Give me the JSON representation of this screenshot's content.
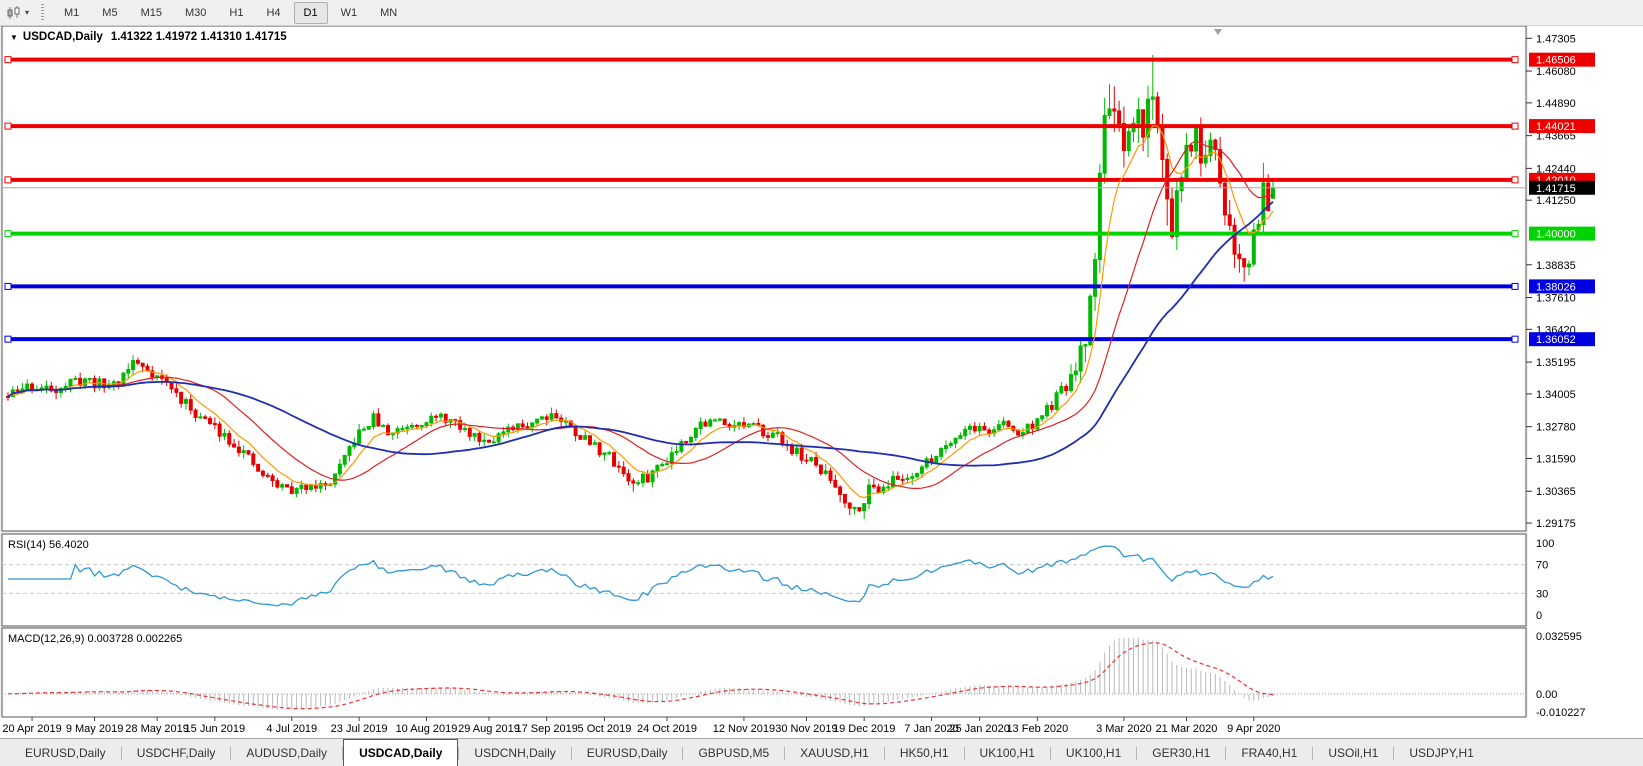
{
  "toolbar": {
    "timeframes": [
      "M1",
      "M5",
      "M15",
      "M30",
      "H1",
      "H4",
      "D1",
      "W1",
      "MN"
    ],
    "active_timeframe": "D1",
    "chart_style_icon": "candlestick-style-icon",
    "dropdown_caret": "▾"
  },
  "window": {
    "dropdown_icon": "▼",
    "title_symbol": "USDCAD,Daily",
    "title_ohlc": "1.41322 1.41972 1.41310 1.41715"
  },
  "indicators": {
    "rsi_label": "RSI(14) 56.4020",
    "macd_label": "MACD(12,26,9) 0.003728 0.002265"
  },
  "chart_data": {
    "type": "candlestick",
    "symbol": "USDCAD",
    "timeframe": "Daily",
    "last_candle": {
      "open": 1.41322,
      "high": 1.41972,
      "low": 1.4131,
      "close": 1.41715
    },
    "n_candles": 264,
    "seed": 11,
    "close_waypoints": [
      [
        0,
        1.339
      ],
      [
        4,
        1.343
      ],
      [
        8,
        1.3415
      ],
      [
        12,
        1.3435
      ],
      [
        16,
        1.3455
      ],
      [
        20,
        1.343
      ],
      [
        23,
        1.345
      ],
      [
        26,
        1.352
      ],
      [
        29,
        1.3495
      ],
      [
        33,
        1.344
      ],
      [
        37,
        1.336
      ],
      [
        41,
        1.33
      ],
      [
        45,
        1.325
      ],
      [
        49,
        1.318
      ],
      [
        52,
        1.311
      ],
      [
        56,
        1.306
      ],
      [
        60,
        1.3035
      ],
      [
        63,
        1.307
      ],
      [
        66,
        1.305
      ],
      [
        69,
        1.312
      ],
      [
        72,
        1.323
      ],
      [
        76,
        1.331
      ],
      [
        79,
        1.325
      ],
      [
        83,
        1.3285
      ],
      [
        87,
        1.3305
      ],
      [
        91,
        1.331
      ],
      [
        95,
        1.326
      ],
      [
        99,
        1.323
      ],
      [
        103,
        1.325
      ],
      [
        107,
        1.328
      ],
      [
        110,
        1.331
      ],
      [
        113,
        1.333
      ],
      [
        116,
        1.329
      ],
      [
        120,
        1.323
      ],
      [
        124,
        1.318
      ],
      [
        127,
        1.313
      ],
      [
        130,
        1.306
      ],
      [
        133,
        1.309
      ],
      [
        136,
        1.314
      ],
      [
        140,
        1.322
      ],
      [
        144,
        1.329
      ],
      [
        148,
        1.33
      ],
      [
        152,
        1.3285
      ],
      [
        156,
        1.327
      ],
      [
        160,
        1.324
      ],
      [
        164,
        1.318
      ],
      [
        168,
        1.313
      ],
      [
        171,
        1.308
      ],
      [
        174,
        1.301
      ],
      [
        176,
        1.2965
      ],
      [
        179,
        1.304
      ],
      [
        183,
        1.307
      ],
      [
        187,
        1.309
      ],
      [
        191,
        1.314
      ],
      [
        196,
        1.323
      ],
      [
        200,
        1.328
      ],
      [
        204,
        1.326
      ],
      [
        207,
        1.329
      ],
      [
        210,
        1.325
      ],
      [
        214,
        1.33
      ],
      [
        217,
        1.336
      ],
      [
        220,
        1.343
      ],
      [
        222,
        1.348
      ],
      [
        224,
        1.36
      ],
      [
        225,
        1.375
      ],
      [
        226,
        1.395
      ],
      [
        227,
        1.42
      ],
      [
        228,
        1.442
      ],
      [
        229,
        1.453
      ],
      [
        230,
        1.445
      ],
      [
        231,
        1.434
      ],
      [
        232,
        1.425
      ],
      [
        233,
        1.433
      ],
      [
        234,
        1.439
      ],
      [
        235,
        1.444
      ],
      [
        236,
        1.44
      ],
      [
        237,
        1.448
      ],
      [
        238,
        1.455
      ],
      [
        239,
        1.438
      ],
      [
        240,
        1.425
      ],
      [
        241,
        1.415
      ],
      [
        242,
        1.404
      ],
      [
        243,
        1.413
      ],
      [
        244,
        1.422
      ],
      [
        245,
        1.428
      ],
      [
        246,
        1.433
      ],
      [
        247,
        1.438
      ],
      [
        248,
        1.43
      ],
      [
        249,
        1.425
      ],
      [
        250,
        1.432
      ],
      [
        251,
        1.428
      ],
      [
        252,
        1.418
      ],
      [
        253,
        1.41
      ],
      [
        254,
        1.402
      ],
      [
        255,
        1.396
      ],
      [
        256,
        1.39
      ],
      [
        257,
        1.387
      ],
      [
        258,
        1.392
      ],
      [
        259,
        1.4
      ],
      [
        260,
        1.408
      ],
      [
        261,
        1.418
      ],
      [
        262,
        1.412
      ],
      [
        263,
        1.41715
      ]
    ],
    "vol_waypoints": [
      [
        0,
        0.0048
      ],
      [
        40,
        0.0045
      ],
      [
        80,
        0.004
      ],
      [
        130,
        0.0048
      ],
      [
        160,
        0.004
      ],
      [
        172,
        0.0055
      ],
      [
        178,
        0.006
      ],
      [
        190,
        0.0042
      ],
      [
        210,
        0.0038
      ],
      [
        218,
        0.0048
      ],
      [
        222,
        0.008
      ],
      [
        225,
        0.013
      ],
      [
        228,
        0.0175
      ],
      [
        232,
        0.0155
      ],
      [
        236,
        0.0145
      ],
      [
        240,
        0.0135
      ],
      [
        244,
        0.0115
      ],
      [
        250,
        0.01
      ],
      [
        255,
        0.0105
      ],
      [
        258,
        0.0115
      ],
      [
        263,
        0.0085
      ]
    ],
    "extreme_candles": [
      {
        "index": 26,
        "high": 1.3545
      },
      {
        "index": 130,
        "low": 1.3035
      },
      {
        "index": 176,
        "low": 1.2952
      },
      {
        "index": 229,
        "high": 1.456
      },
      {
        "index": 238,
        "high": 1.4668
      },
      {
        "index": 241,
        "low": 1.403
      },
      {
        "index": 257,
        "low": 1.382
      },
      {
        "index": 261,
        "high": 1.4265
      }
    ],
    "price_axis": {
      "ticks": [
        1.47305,
        1.4608,
        1.4489,
        1.43665,
        1.4244,
        1.4125,
        1.38835,
        1.3761,
        1.3642,
        1.35195,
        1.34005,
        1.3278,
        1.3159,
        1.30365,
        1.29175
      ]
    },
    "levels": [
      {
        "value": 1.46506,
        "color": "#ee0000"
      },
      {
        "value": 1.44021,
        "color": "#ee0000"
      },
      {
        "value": 1.4201,
        "color": "#ee0000"
      },
      {
        "value": 1.4,
        "color": "#00d400"
      },
      {
        "value": 1.38026,
        "color": "#0000e0"
      },
      {
        "value": 1.36052,
        "color": "#0000e0"
      }
    ],
    "current_price": {
      "value": 1.41715,
      "badge_color": "#000000",
      "line_color": "#a8a8a8"
    },
    "moving_averages": [
      {
        "type": "ema",
        "period": 8,
        "color": "#ff9800",
        "width": 1.2
      },
      {
        "type": "sma",
        "period": 20,
        "color": "#e02020",
        "width": 1.2
      },
      {
        "type": "sma",
        "period": 45,
        "color": "#1f2db0",
        "width": 1.8
      }
    ],
    "rsi": {
      "period": 14,
      "current": 56.402,
      "levels": [
        70,
        30
      ],
      "axis_ticks": [
        100,
        70,
        30,
        0
      ],
      "color": "#2e97d6",
      "level_color": "#c8c8c8"
    },
    "macd": {
      "fast": 12,
      "slow": 26,
      "signal": 9,
      "current_macd": 0.003728,
      "current_signal": 0.002265,
      "max": 0.032595,
      "min": -0.010227,
      "axis_ticks": [
        "0.032595",
        "0.00",
        "-0.010227"
      ],
      "hist_color": "#b8b8b8",
      "signal_color": "#ee3333",
      "zero_color": "#999999"
    },
    "x_axis": {
      "ticks": [
        {
          "bar": 5,
          "label": "20 Apr 2019"
        },
        {
          "bar": 18,
          "label": "9 May 2019"
        },
        {
          "bar": 31,
          "label": "28 May 2019"
        },
        {
          "bar": 43,
          "label": "15 Jun 2019"
        },
        {
          "bar": 59,
          "label": "4 Jul 2019"
        },
        {
          "bar": 73,
          "label": "23 Jul 2019"
        },
        {
          "bar": 87,
          "label": "10 Aug 2019"
        },
        {
          "bar": 100,
          "label": "29 Aug 2019"
        },
        {
          "bar": 112,
          "label": "17 Sep 2019"
        },
        {
          "bar": 124,
          "label": "5 Oct 2019"
        },
        {
          "bar": 137,
          "label": "24 Oct 2019"
        },
        {
          "bar": 153,
          "label": "12 Nov 2019"
        },
        {
          "bar": 166,
          "label": "30 Nov 2019"
        },
        {
          "bar": 178,
          "label": "19 Dec 2019"
        },
        {
          "bar": 192,
          "label": "7 Jan 2020"
        },
        {
          "bar": 202,
          "label": "25 Jan 2020"
        },
        {
          "bar": 214,
          "label": "13 Feb 2020"
        },
        {
          "bar": 232,
          "label": "3 Mar 2020"
        },
        {
          "bar": 245,
          "label": "21 Mar 2020"
        },
        {
          "bar": 259,
          "label": "9 Apr 2020"
        }
      ]
    },
    "candle_up_color": "#00b800",
    "candle_down_color": "#e60000",
    "panel_border_color": "#565656",
    "grid": false
  },
  "tabs": {
    "items": [
      "EURUSD,Daily",
      "USDCHF,Daily",
      "AUDUSD,Daily",
      "USDCAD,Daily",
      "USDCNH,Daily",
      "EURUSD,Daily",
      "GBPUSD,M5",
      "XAUUSD,H1",
      "HK50,H1",
      "UK100,H1",
      "UK100,H1",
      "GER30,H1",
      "FRA40,H1",
      "USOil,H1",
      "USDJPY,H1"
    ],
    "active_index": 3
  }
}
